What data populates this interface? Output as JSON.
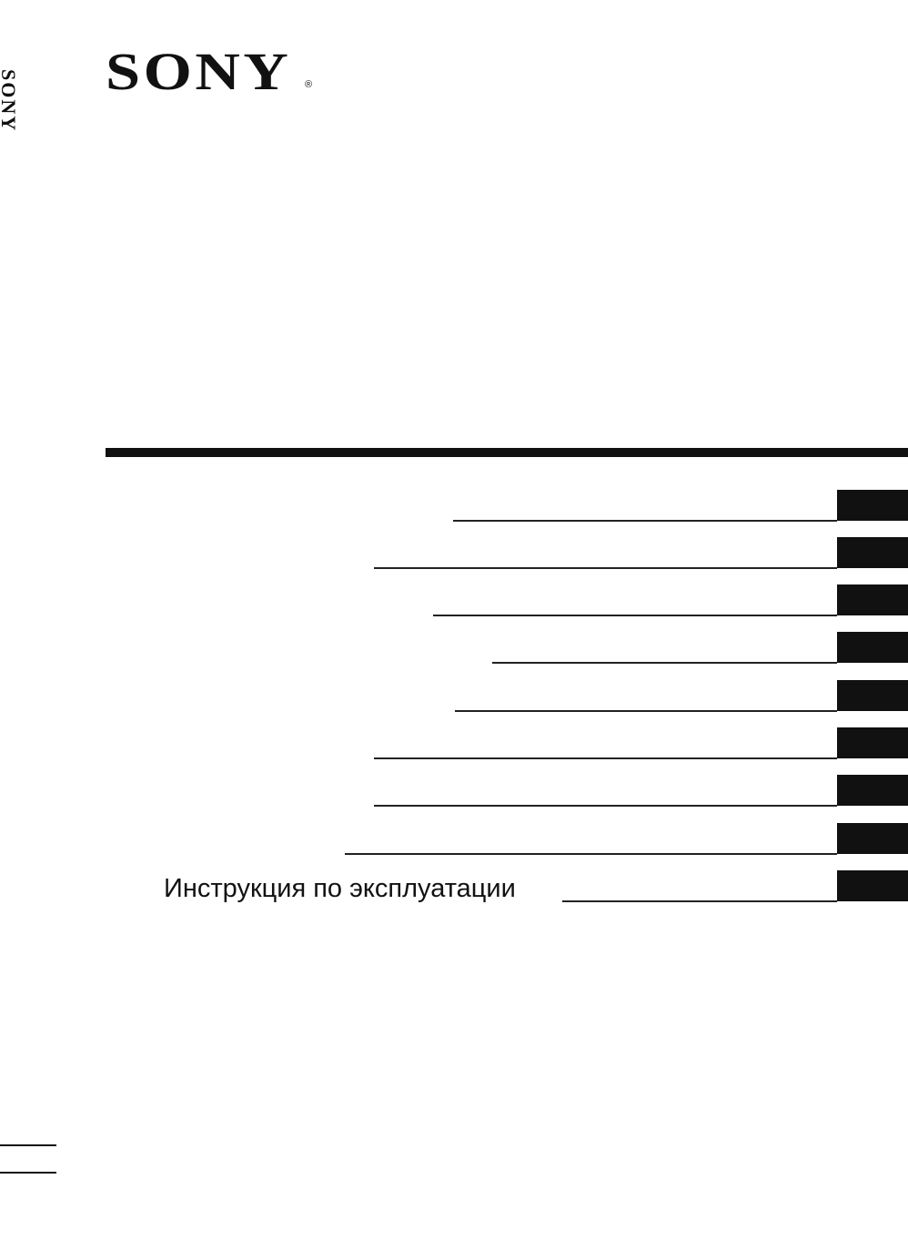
{
  "logo": "SONY",
  "registered": "®",
  "spine": "SONY",
  "toc": {
    "label": "Инструкция по эксплуатации"
  }
}
